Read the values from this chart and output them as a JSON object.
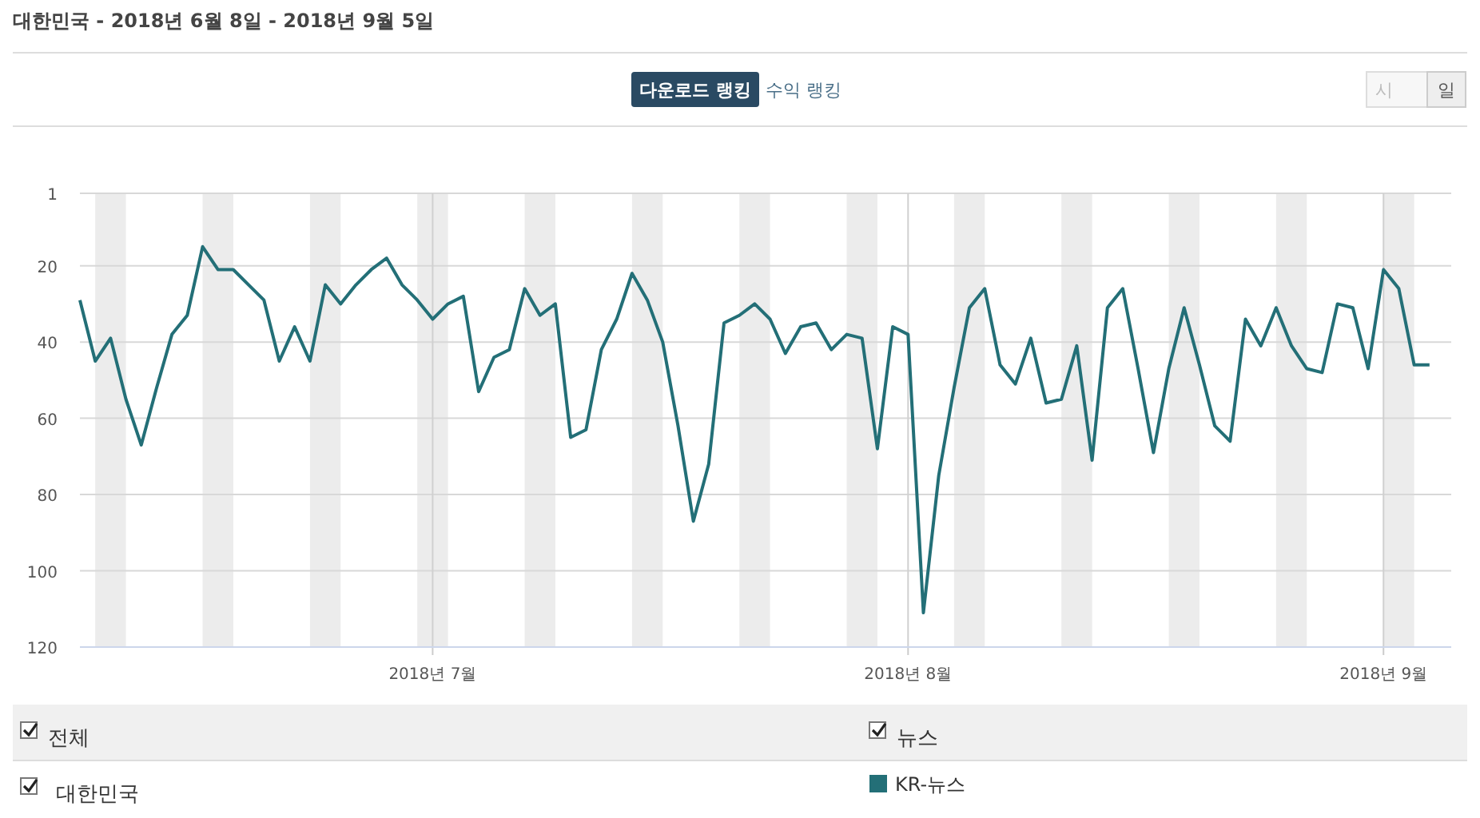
{
  "chart_data": {
    "type": "line",
    "title": "대한민국 - 2018년 6월 8일 - 2018년 9월 5일",
    "annotations": [
      "다운로드 랭킹",
      "수익 랭킹",
      "시",
      "일",
      "전체",
      "뉴스",
      "대한민국"
    ],
    "x": [
      "2018-06-08",
      "2018-06-09",
      "2018-06-10",
      "2018-06-11",
      "2018-06-12",
      "2018-06-13",
      "2018-06-14",
      "2018-06-15",
      "2018-06-16",
      "2018-06-17",
      "2018-06-18",
      "2018-06-19",
      "2018-06-20",
      "2018-06-21",
      "2018-06-22",
      "2018-06-23",
      "2018-06-24",
      "2018-06-25",
      "2018-06-26",
      "2018-06-27",
      "2018-06-28",
      "2018-06-29",
      "2018-06-30",
      "2018-07-01",
      "2018-07-02",
      "2018-07-03",
      "2018-07-04",
      "2018-07-05",
      "2018-07-06",
      "2018-07-07",
      "2018-07-08",
      "2018-07-09",
      "2018-07-10",
      "2018-07-11",
      "2018-07-12",
      "2018-07-13",
      "2018-07-14",
      "2018-07-15",
      "2018-07-16",
      "2018-07-17",
      "2018-07-18",
      "2018-07-19",
      "2018-07-20",
      "2018-07-21",
      "2018-07-22",
      "2018-07-23",
      "2018-07-24",
      "2018-07-25",
      "2018-07-26",
      "2018-07-27",
      "2018-07-28",
      "2018-07-29",
      "2018-07-30",
      "2018-07-31",
      "2018-08-01",
      "2018-08-02",
      "2018-08-03",
      "2018-08-04",
      "2018-08-05",
      "2018-08-06",
      "2018-08-07",
      "2018-08-08",
      "2018-08-09",
      "2018-08-10",
      "2018-08-11",
      "2018-08-12",
      "2018-08-13",
      "2018-08-14",
      "2018-08-15",
      "2018-08-16",
      "2018-08-17",
      "2018-08-18",
      "2018-08-19",
      "2018-08-20",
      "2018-08-21",
      "2018-08-22",
      "2018-08-23",
      "2018-08-24",
      "2018-08-25",
      "2018-08-26",
      "2018-08-27",
      "2018-08-28",
      "2018-08-29",
      "2018-08-30",
      "2018-08-31",
      "2018-09-01",
      "2018-09-02",
      "2018-09-03",
      "2018-09-04"
    ],
    "series": [
      {
        "name": "KR-뉴스",
        "color": "#236f77",
        "values": [
          29,
          45,
          39,
          55,
          67,
          52,
          38,
          33,
          15,
          21,
          21,
          25,
          29,
          45,
          36,
          45,
          25,
          30,
          25,
          21,
          18,
          25,
          29,
          34,
          30,
          28,
          53,
          44,
          42,
          26,
          33,
          30,
          65,
          63,
          42,
          34,
          22,
          29,
          40,
          62,
          87,
          72,
          35,
          33,
          30,
          34,
          43,
          36,
          35,
          42,
          38,
          39,
          68,
          36,
          38,
          111,
          75,
          52,
          31,
          26,
          46,
          51,
          39,
          56,
          55,
          41,
          71,
          31,
          26,
          47,
          69,
          47,
          31,
          46,
          62,
          66,
          34,
          41,
          31,
          41,
          47,
          48,
          30,
          31,
          47,
          21,
          26,
          46,
          46
        ]
      }
    ],
    "xlim": [
      "2018-06-08",
      "2018-09-05"
    ],
    "xticks": [
      {
        "value": "2018-07-01",
        "label": "2018년 7월"
      },
      {
        "value": "2018-08-01",
        "label": "2018년 8월"
      },
      {
        "value": "2018-09-01",
        "label": "2018년 9월"
      }
    ],
    "ylim": [
      120,
      1
    ],
    "yticks": [
      1,
      20,
      40,
      60,
      80,
      100,
      120
    ],
    "bands": [
      {
        "axis": "x",
        "from": "2018-06-09",
        "to": "2018-06-11",
        "color": "#ececec"
      },
      {
        "axis": "x",
        "from": "2018-06-16",
        "to": "2018-06-18",
        "color": "#ececec"
      },
      {
        "axis": "x",
        "from": "2018-06-23",
        "to": "2018-06-25",
        "color": "#ececec"
      },
      {
        "axis": "x",
        "from": "2018-06-30",
        "to": "2018-07-02",
        "color": "#ececec"
      },
      {
        "axis": "x",
        "from": "2018-07-07",
        "to": "2018-07-09",
        "color": "#ececec"
      },
      {
        "axis": "x",
        "from": "2018-07-14",
        "to": "2018-07-16",
        "color": "#ececec"
      },
      {
        "axis": "x",
        "from": "2018-07-21",
        "to": "2018-07-23",
        "color": "#ececec"
      },
      {
        "axis": "x",
        "from": "2018-07-28",
        "to": "2018-07-30",
        "color": "#ececec"
      },
      {
        "axis": "x",
        "from": "2018-08-04",
        "to": "2018-08-06",
        "color": "#ececec"
      },
      {
        "axis": "x",
        "from": "2018-08-11",
        "to": "2018-08-13",
        "color": "#ececec"
      },
      {
        "axis": "x",
        "from": "2018-08-18",
        "to": "2018-08-20",
        "color": "#ececec"
      },
      {
        "axis": "x",
        "from": "2018-08-25",
        "to": "2018-08-27",
        "color": "#ececec"
      },
      {
        "axis": "x",
        "from": "2018-09-01",
        "to": "2018-09-03",
        "color": "#ececec"
      }
    ],
    "grid": true,
    "legend": "bottom",
    "marker": "none",
    "line_style": "solid"
  }
}
